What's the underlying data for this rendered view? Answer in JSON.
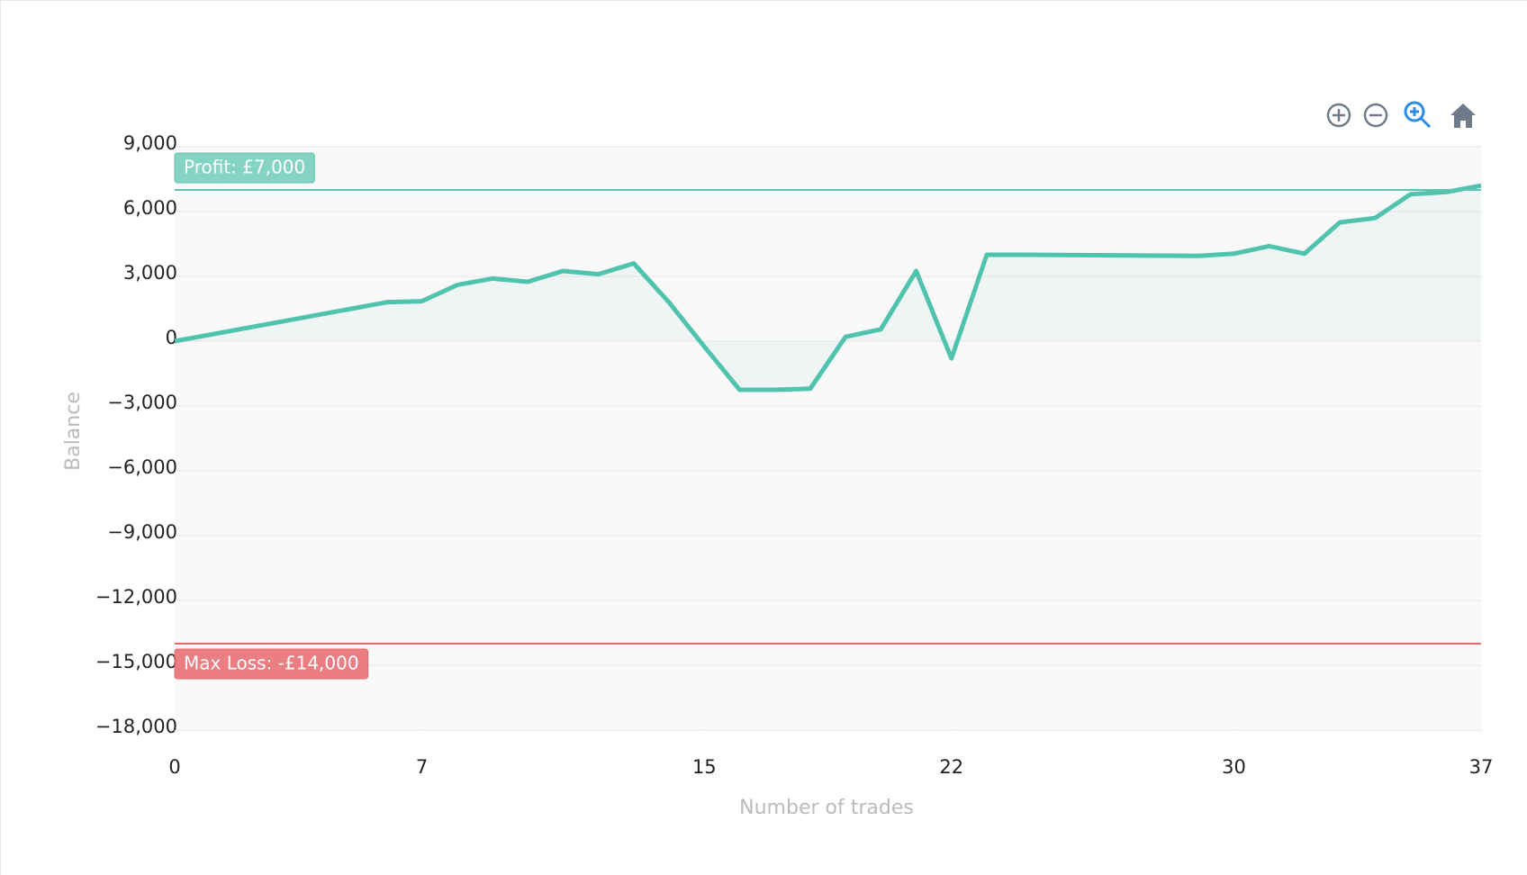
{
  "chart_data": {
    "type": "line",
    "x_label": "Number of trades",
    "y_label": "Balance",
    "x": [
      0,
      1,
      2,
      3,
      4,
      5,
      6,
      7,
      8,
      9,
      10,
      11,
      12,
      13,
      14,
      15,
      16,
      17,
      18,
      19,
      20,
      21,
      22,
      23,
      24,
      25,
      26,
      27,
      28,
      29,
      30,
      31,
      32,
      33,
      34,
      35,
      36,
      37
    ],
    "series": [
      {
        "name": "Balance",
        "color": "#4fc3ae",
        "values": [
          0,
          300,
          600,
          900,
          1200,
          1500,
          1800,
          1850,
          2600,
          2900,
          2750,
          3250,
          3100,
          3600,
          1800,
          -250,
          -2250,
          -2250,
          -2200,
          200,
          550,
          3250,
          -800,
          4000,
          4000,
          3990,
          3980,
          3970,
          3960,
          3950,
          4050,
          4400,
          4050,
          5500,
          5700,
          6800,
          6900,
          7200
        ]
      }
    ],
    "xlim": [
      0,
      37
    ],
    "xticks": [
      0,
      7,
      15,
      22,
      30,
      37
    ],
    "ylim": [
      -18000,
      9000
    ],
    "yticks": [
      {
        "value": -18000,
        "label": "−18,000"
      },
      {
        "value": -15000,
        "label": "−15,000"
      },
      {
        "value": -12000,
        "label": "−12,000"
      },
      {
        "value": -9000,
        "label": "−9,000"
      },
      {
        "value": -6000,
        "label": "−6,000"
      },
      {
        "value": -3000,
        "label": "−3,000"
      },
      0,
      {
        "value": 3000,
        "label": "3,000"
      },
      {
        "value": 6000,
        "label": "6,000"
      },
      {
        "value": 9000,
        "label": "9,000"
      }
    ],
    "grid": true,
    "annotations": [
      {
        "value": 7000,
        "label": "Profit: £7,000",
        "color": "#5cc5b0"
      },
      {
        "value": -14000,
        "label": "Max Loss: -£14,000",
        "color": "#e8686e"
      }
    ]
  }
}
